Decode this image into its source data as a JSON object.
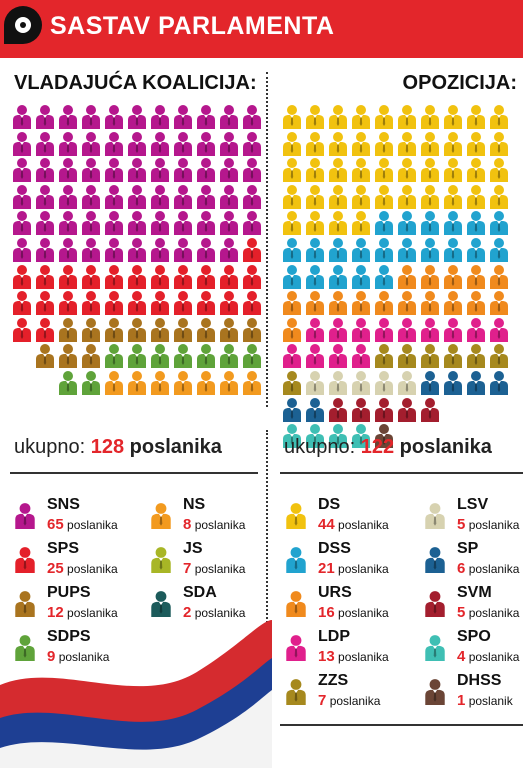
{
  "header": {
    "title": "SASTAV PARLAMENTA"
  },
  "coalition": {
    "title": "VLADAJUĆA KOALICIJA:",
    "total_label": "ukupno:",
    "total_number": "128",
    "total_word": "poslanika",
    "parties": [
      {
        "name": "SNS",
        "seats": "65",
        "unit": "poslanika",
        "color": "#b5178d"
      },
      {
        "name": "SPS",
        "seats": "25",
        "unit": "poslanika",
        "color": "#e4202a"
      },
      {
        "name": "PUPS",
        "seats": "12",
        "unit": "poslanika",
        "color": "#a9741f"
      },
      {
        "name": "SDPS",
        "seats": "9",
        "unit": "poslanika",
        "color": "#5fa33a"
      },
      {
        "name": "NS",
        "seats": "8",
        "unit": "poslanika",
        "color": "#f29a1f"
      },
      {
        "name": "JS",
        "seats": "7",
        "unit": "poslanika",
        "color": "#a8b626"
      },
      {
        "name": "SDA",
        "seats": "2",
        "unit": "poslanika",
        "color": "#1c5b5b"
      }
    ]
  },
  "opposition": {
    "title": "OPOZICIJA:",
    "total_label": "ukupno:",
    "total_number": "122",
    "total_word": "poslanika",
    "parties": [
      {
        "name": "DS",
        "seats": "44",
        "unit": "poslanika",
        "color": "#f1c20f"
      },
      {
        "name": "DSS",
        "seats": "21",
        "unit": "poslanika",
        "color": "#21a3cf"
      },
      {
        "name": "URS",
        "seats": "16",
        "unit": "poslanika",
        "color": "#f08a1d"
      },
      {
        "name": "LDP",
        "seats": "13",
        "unit": "poslanika",
        "color": "#e0208c"
      },
      {
        "name": "ZZS",
        "seats": "7",
        "unit": "poslanika",
        "color": "#a6891e"
      },
      {
        "name": "LSV",
        "seats": "5",
        "unit": "poslanika",
        "color": "#d7d2b0"
      },
      {
        "name": "SP",
        "seats": "6",
        "unit": "poslanika",
        "color": "#1c6193"
      },
      {
        "name": "SVM",
        "seats": "5",
        "unit": "poslanika",
        "color": "#a31e2e"
      },
      {
        "name": "SPO",
        "seats": "4",
        "unit": "poslanika",
        "color": "#3fbfb4"
      },
      {
        "name": "DHSS",
        "seats": "1",
        "unit": "poslanik",
        "color": "#6b4536"
      }
    ]
  }
}
